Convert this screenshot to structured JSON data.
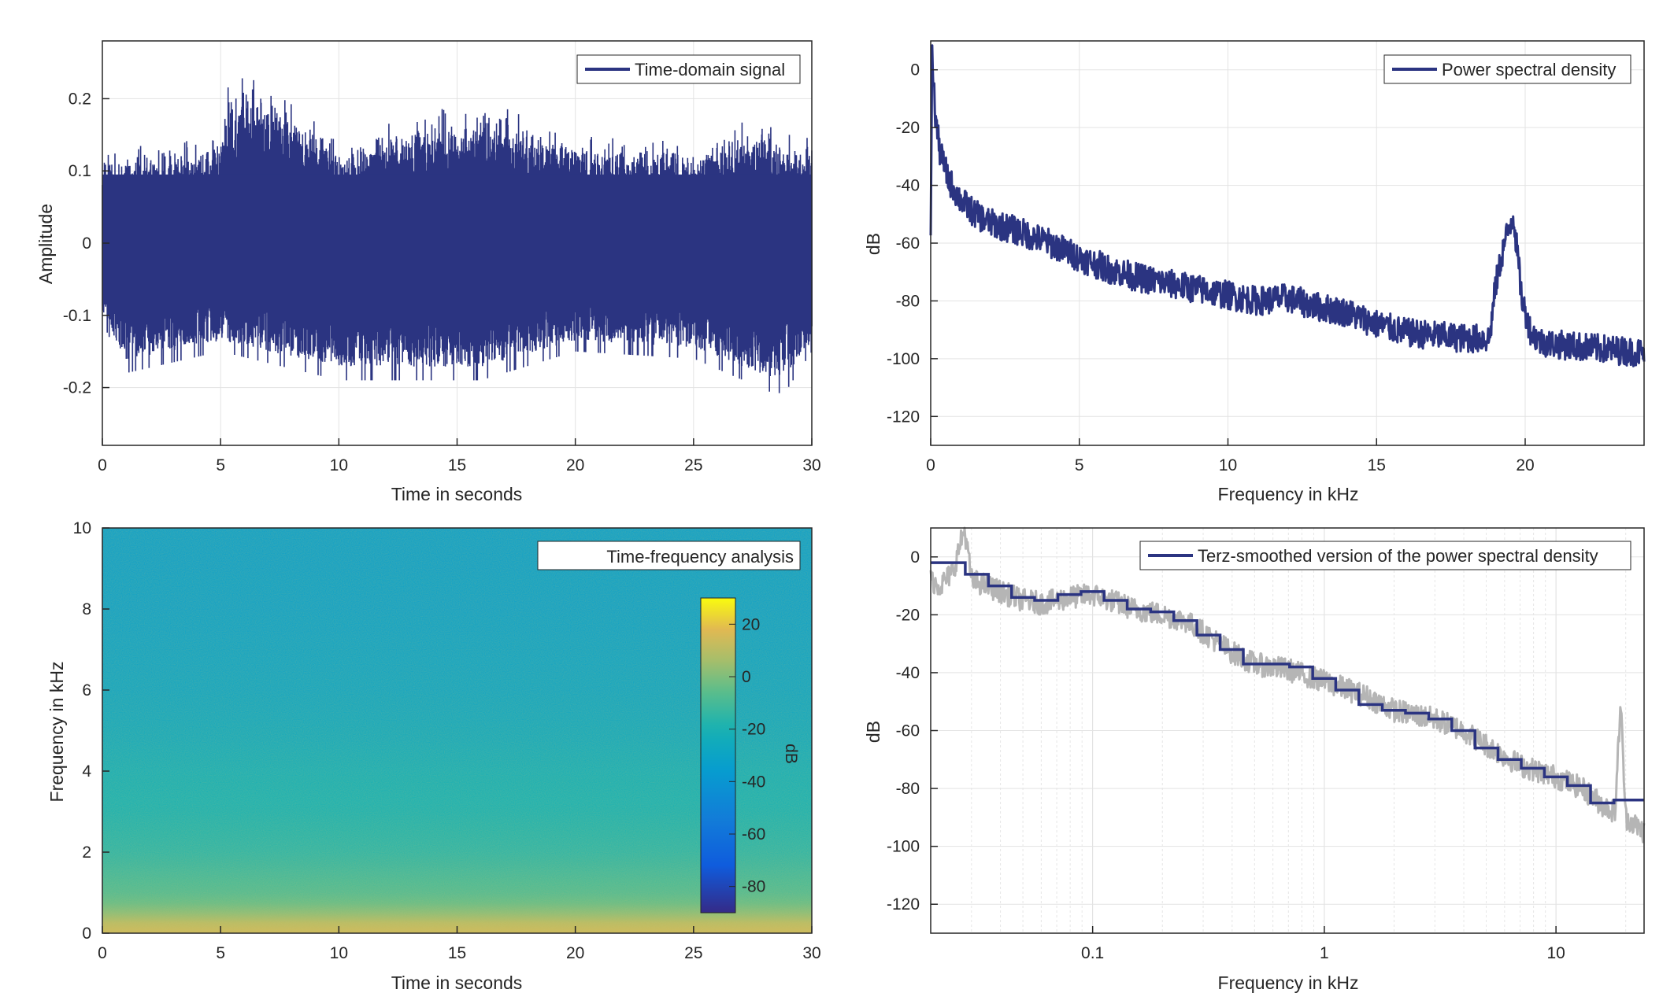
{
  "chart_data": [
    {
      "type": "line",
      "panel": "time-domain",
      "xlabel": "Time in seconds",
      "ylabel": "Amplitude",
      "xlim": [
        0,
        30
      ],
      "ylim": [
        -0.28,
        0.28
      ],
      "xticks": [
        0,
        5,
        10,
        15,
        20,
        25,
        30
      ],
      "yticks": [
        -0.2,
        -0.1,
        0,
        0.1,
        0.2
      ],
      "ytick_labels": [
        "-0.2",
        "-0.1",
        "0",
        "0.1",
        "0.2"
      ],
      "grid": true,
      "legend_position": "top-right",
      "series": [
        {
          "name": "Time-domain signal",
          "color": "#2b3481",
          "envelope_upper": [
            [
              0,
              0.13
            ],
            [
              3,
              0.14
            ],
            [
              5,
              0.15
            ],
            [
              5.2,
              0.23
            ],
            [
              6.8,
              0.23
            ],
            [
              10,
              0.15
            ],
            [
              16,
              0.2
            ],
            [
              20,
              0.15
            ],
            [
              25,
              0.14
            ],
            [
              27,
              0.17
            ],
            [
              30,
              0.15
            ]
          ],
          "envelope_lower": [
            [
              0,
              -0.11
            ],
            [
              1,
              -0.18
            ],
            [
              5,
              -0.15
            ],
            [
              10,
              -0.19
            ],
            [
              16,
              -0.19
            ],
            [
              20,
              -0.15
            ],
            [
              25,
              -0.16
            ],
            [
              28.5,
              -0.21
            ],
            [
              29,
              -0.2
            ],
            [
              30,
              -0.15
            ]
          ]
        }
      ]
    },
    {
      "type": "line",
      "panel": "psd",
      "xlabel": "Frequency in kHz",
      "ylabel": "dB",
      "xlim": [
        0,
        24
      ],
      "ylim": [
        -130,
        10
      ],
      "xticks": [
        0,
        5,
        10,
        15,
        20
      ],
      "yticks": [
        0,
        -20,
        -40,
        -60,
        -80,
        -100,
        -120
      ],
      "grid": true,
      "legend_position": "top-right",
      "series": [
        {
          "name": "Power spectral density",
          "color": "#2b3481",
          "x": [
            0,
            0.05,
            0.15,
            0.3,
            0.6,
            1,
            1.5,
            2,
            3,
            4,
            5,
            6,
            7,
            8,
            9,
            10,
            11,
            12,
            13,
            14,
            15,
            16,
            17,
            18,
            18.8,
            19,
            19.3,
            19.6,
            19.9,
            20.2,
            20.5,
            21,
            22,
            23,
            24
          ],
          "y": [
            -55,
            5,
            -15,
            -28,
            -38,
            -45,
            -50,
            -53,
            -56,
            -60,
            -65,
            -69,
            -72,
            -74,
            -76,
            -78,
            -80,
            -79,
            -82,
            -84,
            -88,
            -91,
            -92,
            -93,
            -93,
            -75,
            -60,
            -50,
            -80,
            -91,
            -94,
            -95,
            -96,
            -97,
            -98
          ],
          "band": 5
        }
      ]
    },
    {
      "type": "heatmap",
      "panel": "spectrogram",
      "xlabel": "Time in seconds",
      "ylabel": "Frequency in kHz",
      "xlim": [
        0,
        30
      ],
      "ylim": [
        0,
        10
      ],
      "xticks": [
        0,
        5,
        10,
        15,
        20,
        25,
        30
      ],
      "yticks": [
        0,
        2,
        4,
        6,
        8,
        10
      ],
      "legend_position": "top-right",
      "legend_label": "Time-frequency analysis",
      "colorbar": {
        "label": "dB",
        "limits": [
          -90,
          30
        ],
        "ticks": [
          20,
          0,
          -20,
          -40,
          -60,
          -80
        ]
      },
      "frequency_profile_db": [
        [
          0,
          15
        ],
        [
          0.3,
          10
        ],
        [
          0.6,
          -2
        ],
        [
          1,
          -8
        ],
        [
          2,
          -16
        ],
        [
          3,
          -20
        ],
        [
          4,
          -23
        ],
        [
          5,
          -27
        ],
        [
          6,
          -30
        ],
        [
          8,
          -33
        ],
        [
          10,
          -34
        ]
      ]
    },
    {
      "type": "line",
      "panel": "terz-psd",
      "xlabel": "Frequency in kHz",
      "ylabel": "dB",
      "xscale": "log",
      "xlim": [
        0.02,
        24
      ],
      "ylim": [
        -130,
        10
      ],
      "xticks": [
        0.1,
        1,
        10
      ],
      "xtick_labels": [
        "0.1",
        "1",
        "10"
      ],
      "yticks": [
        0,
        -20,
        -40,
        -60,
        -80,
        -100,
        -120
      ],
      "grid": true,
      "legend_position": "top-right",
      "series": [
        {
          "name": "",
          "color": "#b5b5b5",
          "x": [
            0.02,
            0.022,
            0.025,
            0.028,
            0.03,
            0.035,
            0.04,
            0.05,
            0.06,
            0.07,
            0.08,
            0.1,
            0.12,
            0.15,
            0.2,
            0.25,
            0.3,
            0.4,
            0.5,
            0.7,
            1,
            1.5,
            2,
            3,
            4,
            5,
            7,
            10,
            13,
            16,
            18,
            19,
            20,
            24
          ],
          "y": [
            -8,
            -10,
            -5,
            10,
            -8,
            -10,
            -12,
            -15,
            -16,
            -15,
            -14,
            -13,
            -15,
            -18,
            -20,
            -22,
            -26,
            -33,
            -37,
            -39,
            -43,
            -48,
            -53,
            -56,
            -60,
            -65,
            -72,
            -76,
            -80,
            -86,
            -88,
            -50,
            -90,
            -95
          ],
          "band": 4
        },
        {
          "name": "Terz-smoothed version of the power spectral density",
          "color": "#2b3481",
          "x": [
            0.02,
            0.0282,
            0.0355,
            0.0447,
            0.0562,
            0.0708,
            0.0891,
            0.112,
            0.141,
            0.178,
            0.224,
            0.282,
            0.355,
            0.447,
            0.562,
            0.708,
            0.891,
            1.12,
            1.41,
            1.78,
            2.24,
            2.82,
            3.55,
            4.47,
            5.62,
            7.08,
            8.91,
            11.2,
            14.1,
            17.8,
            24
          ],
          "y": [
            -2,
            -6,
            -10,
            -14,
            -15,
            -13,
            -12,
            -15,
            -18,
            -19,
            -22,
            -27,
            -32,
            -37,
            -37,
            -38,
            -42,
            -46,
            -51,
            -53,
            -54,
            -56,
            -60,
            -66,
            -70,
            -73,
            -76,
            -79,
            -85,
            -84,
            -84
          ]
        }
      ]
    }
  ]
}
